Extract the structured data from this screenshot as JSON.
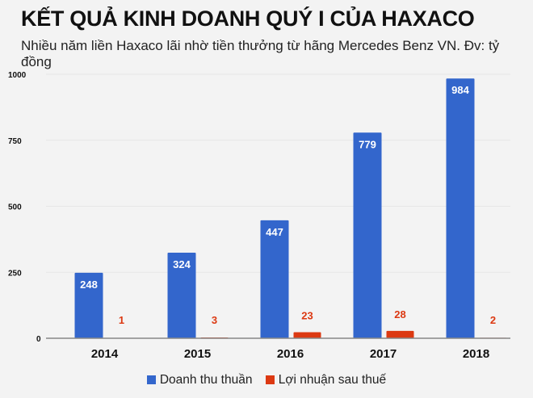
{
  "chart_data": {
    "type": "bar",
    "title": "KẾT QUẢ KINH DOANH QUÝ I CỦA HAXACO",
    "subtitle": "Nhiều năm liền Haxaco lãi nhờ tiền thưởng từ hãng Mercedes Benz VN. Đv: tỷ đồng",
    "categories": [
      "2014",
      "2015",
      "2016",
      "2017",
      "2018"
    ],
    "series": [
      {
        "name": "Doanh thu thuần",
        "color": "#3366cc",
        "values": [
          248,
          324,
          447,
          779,
          984
        ]
      },
      {
        "name": "Lợi nhuận sau thuế",
        "color": "#dc3912",
        "values": [
          1,
          3,
          23,
          28,
          2
        ]
      }
    ],
    "yticks": [
      0,
      250,
      500,
      750,
      1000
    ],
    "ylim": [
      0,
      1000
    ],
    "xlabel": "",
    "ylabel": "",
    "grid": true,
    "legend": "bottom"
  }
}
